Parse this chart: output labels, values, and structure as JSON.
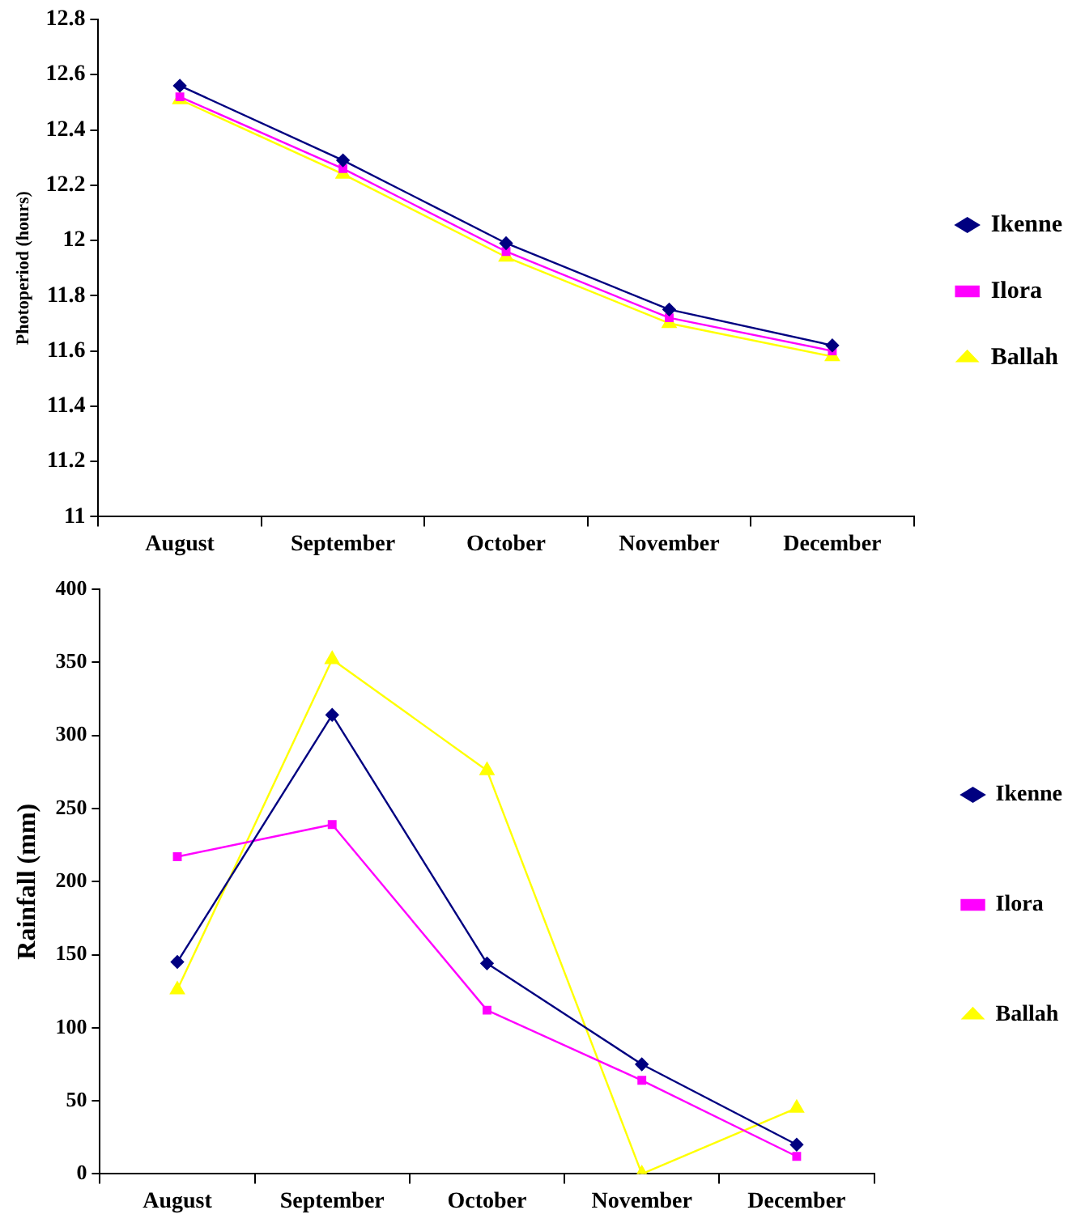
{
  "chart_data": [
    {
      "type": "line",
      "ylabel": "Photoperiod (hours)",
      "categories": [
        "August",
        "September",
        "October",
        "November",
        "December"
      ],
      "series": [
        {
          "name": "Ikenne",
          "color": "#000080",
          "marker": "diamond",
          "values": [
            12.56,
            12.29,
            11.99,
            11.75,
            11.62
          ]
        },
        {
          "name": "Ilora",
          "color": "#ff00ff",
          "marker": "square",
          "values": [
            12.52,
            12.26,
            11.96,
            11.72,
            11.6
          ]
        },
        {
          "name": "Ballah",
          "color": "#ffff00",
          "marker": "triangle",
          "values": [
            12.51,
            12.24,
            11.94,
            11.7,
            11.58
          ]
        }
      ],
      "ylim": [
        11,
        12.8
      ],
      "yticks": [
        11,
        11.2,
        11.4,
        11.6,
        11.8,
        12,
        12.2,
        12.4,
        12.6,
        12.8
      ],
      "grid": false,
      "legend": "right"
    },
    {
      "type": "line",
      "ylabel": "Rainfall (mm)",
      "categories": [
        "August",
        "September",
        "October",
        "November",
        "December"
      ],
      "series": [
        {
          "name": "Ikenne",
          "color": "#000080",
          "marker": "diamond",
          "values": [
            145,
            314,
            144,
            75,
            20
          ]
        },
        {
          "name": "Ilora",
          "color": "#ff00ff",
          "marker": "square",
          "values": [
            217,
            239,
            112,
            64,
            12
          ]
        },
        {
          "name": "Ballah",
          "color": "#ffff00",
          "marker": "triangle",
          "values": [
            126,
            352,
            276,
            0,
            45
          ]
        }
      ],
      "ylim": [
        0,
        400
      ],
      "yticks": [
        0,
        50,
        100,
        150,
        200,
        250,
        300,
        350,
        400
      ],
      "grid": false,
      "legend": "right"
    }
  ]
}
